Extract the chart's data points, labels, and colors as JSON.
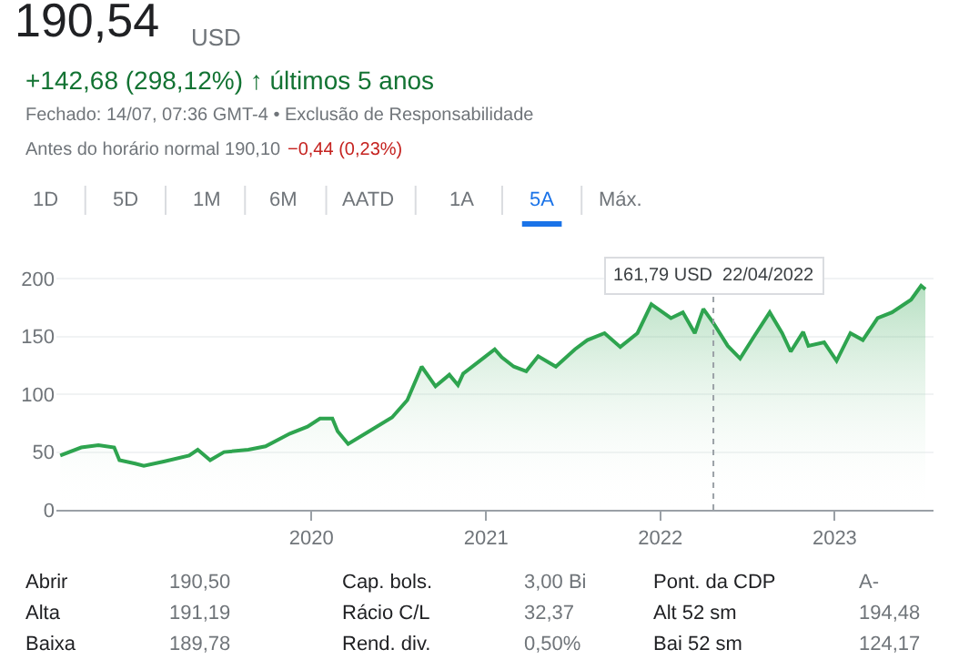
{
  "chart_data": {
    "type": "area",
    "title": "190,54",
    "annotations": [
      "USD",
      "+142,68 (298,12%) ↑ últimos 5 anos",
      "Fechado: 14/07, 07:36 GMT-4 • Exclusão de Responsabilidade",
      "Antes do horário normal 190,10",
      "−0,44 (0,23%)",
      "1D",
      "5D",
      "1M",
      "6M",
      "AATD",
      "1A",
      "5A",
      "Máx.",
      "Abrir",
      "190,50",
      "Cap. bols.",
      "3,00 Bi",
      "Pont. da CDP",
      "A-",
      "Alta",
      "191,19",
      "Rácio C/L",
      "32,37",
      "Alt 52 sm",
      "194,48",
      "Baixa",
      "189,78",
      "Rend. div.",
      "0,50%",
      "Bai 52 sm",
      "124,17",
      {
        "text": "161,79 USD  22/04/2022",
        "x": "2022-04-22",
        "y": 161.79
      }
    ],
    "x": [
      "2018-07-24",
      "2018-09-06",
      "2018-10-12",
      "2018-11-14",
      "2018-11-25",
      "2018-12-28",
      "2019-01-15",
      "2019-02-28",
      "2019-04-20",
      "2019-05-08",
      "2019-06-03",
      "2019-07-02",
      "2019-08-22",
      "2019-09-27",
      "2019-11-17",
      "2019-12-24",
      "2020-01-19",
      "2020-02-14",
      "2020-02-25",
      "2020-03-18",
      "2020-05-01",
      "2020-06-18",
      "2020-07-20",
      "2020-08-19",
      "2020-09-17",
      "2020-10-16",
      "2020-11-03",
      "2020-11-14",
      "2020-12-28",
      "2021-01-19",
      "2021-02-03",
      "2021-02-28",
      "2021-03-26",
      "2021-04-20",
      "2021-05-27",
      "2021-07-06",
      "2021-08-01",
      "2021-09-06",
      "2021-10-09",
      "2021-11-14",
      "2021-12-13",
      "2022-01-23",
      "2022-02-17",
      "2022-03-14",
      "2022-04-01",
      "2022-04-22",
      "2022-05-22",
      "2022-06-17",
      "2022-07-16",
      "2022-08-18",
      "2022-09-13",
      "2022-10-01",
      "2022-10-27",
      "2022-11-07",
      "2022-12-10",
      "2023-01-05",
      "2023-02-03",
      "2023-03-01",
      "2023-04-01",
      "2023-05-01",
      "2023-06-10",
      "2023-07-01",
      "2023-07-10"
    ],
    "values": [
      47,
      54,
      56,
      54,
      43,
      40,
      38,
      42,
      47,
      52,
      43,
      50,
      52,
      55,
      66,
      72,
      79,
      79,
      68,
      57,
      68,
      80,
      95,
      124,
      107,
      117,
      108,
      118,
      132,
      139,
      132,
      124,
      120,
      133,
      124,
      139,
      147,
      153,
      141,
      153,
      178,
      166,
      171,
      153,
      174,
      161.79,
      142,
      131,
      150,
      171,
      153,
      137,
      154,
      142,
      145,
      129,
      153,
      147,
      166,
      171,
      182,
      194,
      191
    ],
    "color": "#2ea44f",
    "xlim": [
      "2018-07-16",
      "2023-07-27"
    ],
    "xticks": [
      "2020",
      "2021",
      "2022",
      "2023"
    ],
    "ylim": [
      0,
      205
    ],
    "yticks": [
      0,
      50,
      100,
      150,
      200
    ],
    "grid": "y",
    "legend": false,
    "ref_lines": [
      {
        "axis": "x",
        "value": "2022-04-22",
        "color": "#9aa0a6",
        "line_style": "dotted"
      }
    ]
  }
}
